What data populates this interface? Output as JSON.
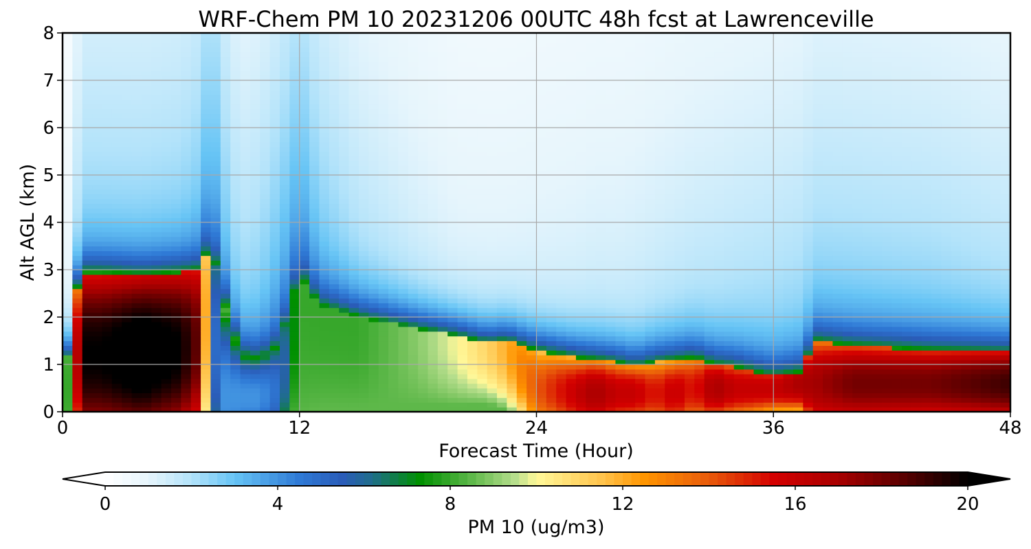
{
  "chart_data": {
    "type": "heatmap",
    "title": "WRF-Chem PM 10  20231206 00UTC 48h fcst at Lawrenceville",
    "xlabel": "Forecast Time (Hour)",
    "ylabel": "Alt AGL (km)",
    "xlim": [
      0,
      48
    ],
    "ylim": [
      0,
      8
    ],
    "x_ticks": [
      "0",
      "12",
      "24",
      "36",
      "48"
    ],
    "y_ticks": [
      "0",
      "1",
      "2",
      "3",
      "4",
      "5",
      "6",
      "7",
      "8"
    ],
    "grid": true,
    "colorbar": {
      "label": "PM 10  (ug/m3)",
      "range": [
        0,
        20
      ],
      "ticks": [
        "0",
        "4",
        "8",
        "12",
        "16",
        "20"
      ],
      "extend": "both",
      "stops": [
        {
          "v": 0,
          "c": "#ffffff"
        },
        {
          "v": 1,
          "c": "#e6f5fc"
        },
        {
          "v": 2,
          "c": "#b3e3fa"
        },
        {
          "v": 3,
          "c": "#66c4f5"
        },
        {
          "v": 4.5,
          "c": "#2f7ad6"
        },
        {
          "v": 5.5,
          "c": "#2a5cb8"
        },
        {
          "v": 6.2,
          "c": "#1f6e8a"
        },
        {
          "v": 7.3,
          "c": "#009000"
        },
        {
          "v": 8.5,
          "c": "#5eb84a"
        },
        {
          "v": 9.5,
          "c": "#b6de8c"
        },
        {
          "v": 10,
          "c": "#fff899"
        },
        {
          "v": 11.5,
          "c": "#ffc44d"
        },
        {
          "v": 12.5,
          "c": "#ff9500"
        },
        {
          "v": 14,
          "c": "#e85a0a"
        },
        {
          "v": 15.5,
          "c": "#d40000"
        },
        {
          "v": 17,
          "c": "#a80000"
        },
        {
          "v": 18.5,
          "c": "#5a0000"
        },
        {
          "v": 20,
          "c": "#000000"
        }
      ]
    },
    "sample_hours": [
      0,
      0.5,
      1,
      2,
      4,
      6,
      7,
      7.5,
      8,
      9,
      10,
      11,
      12,
      13,
      15,
      18,
      20,
      21.5,
      22.5,
      24,
      26,
      27,
      28,
      29,
      30,
      31,
      32,
      33,
      34,
      36,
      37.5,
      38,
      40,
      44,
      48
    ],
    "boundary_layer_top_km": [
      0,
      2.3,
      2.95,
      2.95,
      2.9,
      2.95,
      3.0,
      3.6,
      2.6,
      1.2,
      1.1,
      1.4,
      2.9,
      2.25,
      2.0,
      1.75,
      1.6,
      1.45,
      1.5,
      1.3,
      1.15,
      1.1,
      1.05,
      0.95,
      1.05,
      1.1,
      1.15,
      1.0,
      0.95,
      0.75,
      0.85,
      1.5,
      1.4,
      1.3,
      1.25
    ],
    "peak_near_surface_ug_m3": [
      3,
      13,
      20,
      20,
      21,
      20,
      18,
      6,
      4,
      4,
      4,
      5,
      8,
      8,
      8,
      9,
      10,
      11,
      12,
      14,
      16,
      17,
      16,
      16,
      15,
      16,
      15,
      17,
      16,
      16,
      17,
      17,
      18,
      18,
      19
    ],
    "elevated_peak_km": [
      0,
      1,
      1.2,
      1.2,
      1.2,
      1.3,
      1.5,
      2.5,
      0.3,
      0.3,
      0.3,
      0.5,
      2.3,
      2.0,
      1.8,
      1.65,
      1.5,
      1.4,
      1.3,
      0.5,
      0.4,
      0.4,
      0.4,
      0.4,
      0.4,
      0.4,
      0.5,
      0.5,
      0.5,
      0.5,
      0.6,
      0.6,
      0.6,
      0.6,
      0.6
    ],
    "aloft_background_ug_m3": [
      0.3,
      1.5,
      2.5,
      2.5,
      2.5,
      2.6,
      3.0,
      4.0,
      3.2,
      2.5,
      2.8,
      3.5,
      3.8,
      3.0,
      2.2,
      1.6,
      1.3,
      1.3,
      1.3,
      1.4,
      1.5,
      1.6,
      1.6,
      1.7,
      1.8,
      1.9,
      2.0,
      2.1,
      2.2,
      2.4,
      2.5,
      2.6,
      2.6,
      2.5,
      2.2
    ]
  }
}
